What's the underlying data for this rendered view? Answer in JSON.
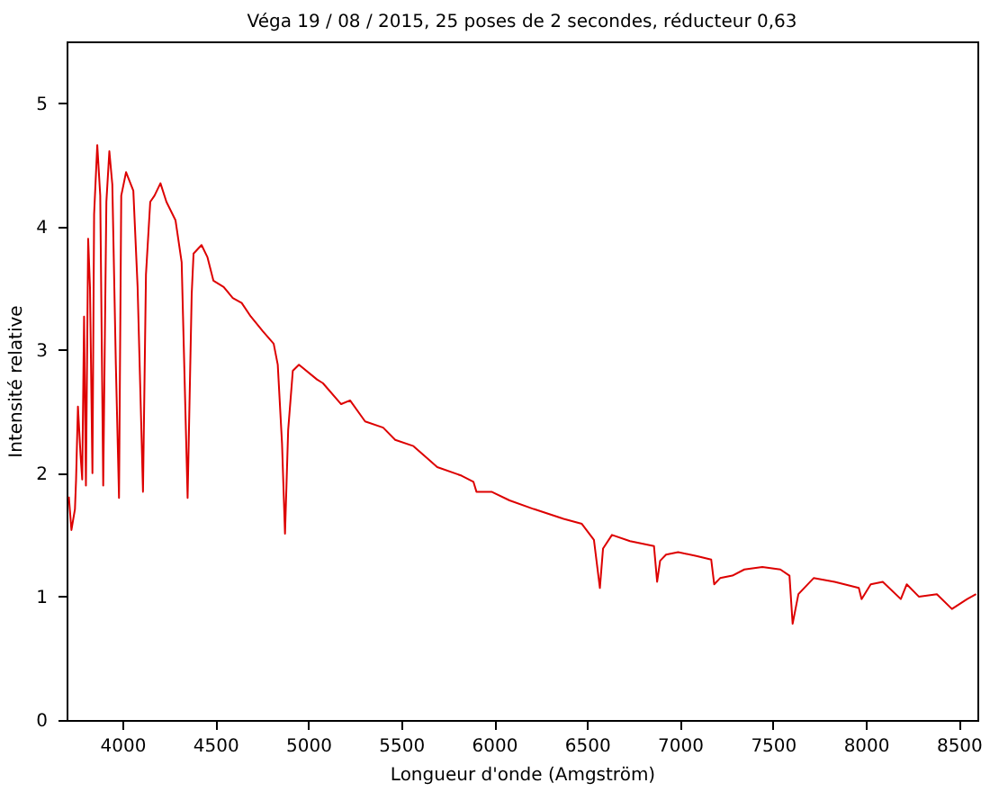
{
  "chart_data": {
    "type": "line",
    "title": "Véga 19 / 08 / 2015, 25 poses de 2 secondes, réducteur 0,63",
    "xlabel": "Longueur d'onde (Amgström)",
    "ylabel": "Intensité relative",
    "xlim": [
      3700,
      8600
    ],
    "ylim": [
      0,
      5.5
    ],
    "xticks": [
      4000,
      4500,
      5000,
      5500,
      6000,
      6500,
      7000,
      7500,
      8000,
      8500
    ],
    "yticks": [
      0,
      1,
      2,
      3,
      4,
      5
    ],
    "color": "#dd0000",
    "line_style": "solid",
    "x": [
      3712,
      3726,
      3745,
      3751,
      3761,
      3775,
      3784,
      3794,
      3804,
      3816,
      3826,
      3839,
      3848,
      3865,
      3881,
      3897,
      3914,
      3930,
      3946,
      3965,
      3982,
      3994,
      4020,
      4059,
      4082,
      4111,
      4127,
      4150,
      4173,
      4205,
      4237,
      4286,
      4319,
      4351,
      4373,
      4383,
      4426,
      4458,
      4490,
      4545,
      4594,
      4642,
      4691,
      4756,
      4814,
      4836,
      4859,
      4875,
      4892,
      4917,
      4950,
      5047,
      5079,
      5177,
      5225,
      5306,
      5403,
      5468,
      5566,
      5694,
      5825,
      5889,
      5905,
      5986,
      6083,
      6213,
      6374,
      6472,
      6537,
      6569,
      6586,
      6634,
      6731,
      6860,
      6877,
      6893,
      6925,
      6990,
      7088,
      7168,
      7184,
      7216,
      7282,
      7346,
      7443,
      7540,
      7589,
      7606,
      7637,
      7719,
      7832,
      7962,
      7977,
      8026,
      8091,
      8188,
      8220,
      8285,
      8382,
      8463,
      8545,
      8593
    ],
    "values": [
      1.81,
      1.54,
      1.71,
      1.95,
      2.54,
      2.15,
      1.95,
      3.27,
      1.9,
      3.9,
      3.5,
      2.0,
      4.1,
      4.66,
      4.25,
      1.9,
      4.2,
      4.61,
      4.34,
      2.88,
      1.8,
      4.25,
      4.44,
      4.29,
      3.51,
      1.85,
      3.61,
      4.2,
      4.25,
      4.35,
      4.2,
      4.05,
      3.71,
      1.8,
      3.45,
      3.78,
      3.85,
      3.75,
      3.56,
      3.51,
      3.42,
      3.38,
      3.27,
      3.15,
      3.05,
      2.88,
      2.24,
      1.51,
      2.35,
      2.83,
      2.88,
      2.76,
      2.73,
      2.56,
      2.59,
      2.42,
      2.37,
      2.27,
      2.22,
      2.05,
      1.98,
      1.93,
      1.85,
      1.85,
      1.78,
      1.71,
      1.63,
      1.59,
      1.46,
      1.07,
      1.39,
      1.5,
      1.45,
      1.41,
      1.12,
      1.29,
      1.34,
      1.36,
      1.33,
      1.3,
      1.1,
      1.15,
      1.17,
      1.22,
      1.24,
      1.22,
      1.17,
      0.78,
      1.02,
      1.15,
      1.12,
      1.07,
      0.98,
      1.1,
      1.12,
      0.98,
      1.1,
      1.0,
      1.02,
      0.9,
      0.98,
      1.02
    ]
  }
}
